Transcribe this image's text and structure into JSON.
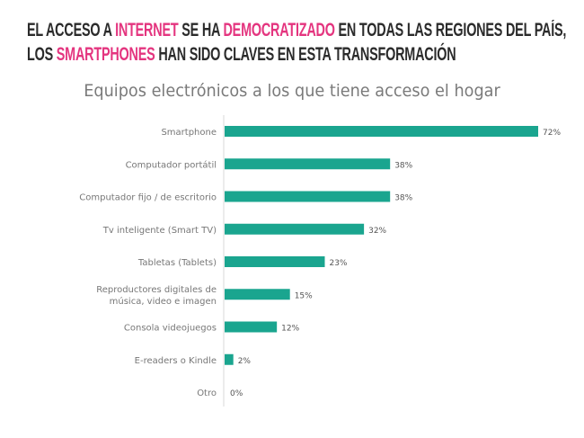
{
  "headline": {
    "line1": [
      {
        "text": "EL ACCESO A ",
        "highlight": false
      },
      {
        "text": "INTERNET",
        "highlight": true
      },
      {
        "text": " SE HA ",
        "highlight": false
      },
      {
        "text": "DEMOCRATIZADO",
        "highlight": true
      },
      {
        "text": " EN TODAS LAS REGIONES DEL PAÍS,",
        "highlight": false
      }
    ],
    "line2": [
      {
        "text": "LOS ",
        "highlight": false
      },
      {
        "text": "SMARTPHONES",
        "highlight": true
      },
      {
        "text": " HAN SIDO CLAVES EN ESTA TRANSFORMACIÓN",
        "highlight": false
      }
    ],
    "highlight_color": "#e4357f"
  },
  "chart_data": {
    "type": "bar",
    "orientation": "horizontal",
    "title": "Equipos electrónicos a los que tiene acceso el hogar",
    "categories": [
      "Smartphone",
      "Computador portátil",
      "Computador fijo / de escritorio",
      "Tv inteligente (Smart TV)",
      "Tabletas (Tablets)",
      "Reproductores digitales de música, video e imagen",
      "Consola videojuegos",
      "E-readers o Kindle",
      "Otro"
    ],
    "category_lines": [
      [
        "Smartphone"
      ],
      [
        "Computador portátil"
      ],
      [
        "Computador fijo / de escritorio"
      ],
      [
        "Tv inteligente (Smart TV)"
      ],
      [
        "Tabletas (Tablets)"
      ],
      [
        "Reproductores digitales de",
        "música, video e imagen"
      ],
      [
        "Consola videojuegos"
      ],
      [
        "E-readers o Kindle"
      ],
      [
        "Otro"
      ]
    ],
    "values": [
      72,
      38,
      38,
      32,
      23,
      15,
      12,
      2,
      0
    ],
    "data_labels": [
      "72%",
      "38%",
      "38%",
      "32%",
      "23%",
      "15%",
      "12%",
      "2%",
      "0%"
    ],
    "unit": "%",
    "bar_color": "#1aa58f",
    "xlim": [
      0,
      72
    ],
    "grid": false
  }
}
